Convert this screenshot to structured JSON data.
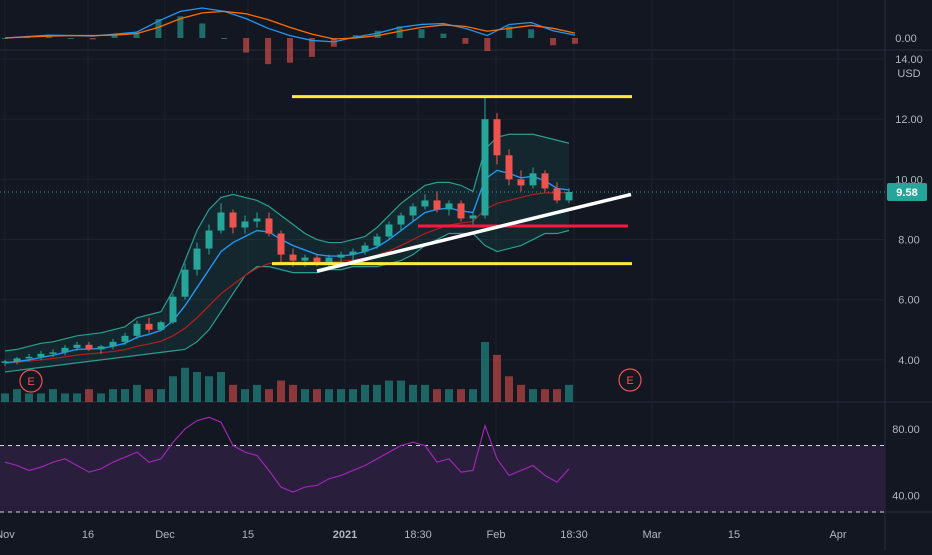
{
  "colors": {
    "background": "#131722",
    "grid": "#1e222d",
    "axis_text": "#b2b5be",
    "candle_up": "#26a69a",
    "candle_down": "#ef5350",
    "bollinger": "#2a9d8f",
    "ema_fast": "#2196f3",
    "ema_slow": "#b71c1c",
    "macd_line": "#2196f3",
    "macd_signal": "#ff6d00",
    "rsi_line": "#9c27b0",
    "rsi_band": "#2a1e3d",
    "price_badge": "#26a69a",
    "trend_resistance": "#ffeb3b",
    "trend_support": "#ffeb3b",
    "trend_rising": "#ffffff",
    "trend_level_red": "#ff1744"
  },
  "chart_data": [
    {
      "type": "line",
      "panel": "macd",
      "y_ticks": [
        "0.00"
      ],
      "series": [
        {
          "values": [
            0.0,
            0.03,
            0.06,
            0.05,
            0.04,
            0.08,
            0.12,
            0.35,
            0.55,
            0.62,
            0.55,
            0.4,
            0.2,
            0.05,
            -0.05,
            -0.08,
            0.02,
            0.1,
            0.22,
            0.28,
            0.3,
            0.2,
            0.05,
            0.28,
            0.32,
            0.15,
            0.06
          ]
        },
        {
          "values": [
            0.0,
            0.02,
            0.04,
            0.05,
            0.05,
            0.06,
            0.09,
            0.22,
            0.4,
            0.52,
            0.55,
            0.5,
            0.38,
            0.22,
            0.08,
            -0.02,
            0.0,
            0.05,
            0.14,
            0.22,
            0.27,
            0.24,
            0.14,
            0.2,
            0.26,
            0.2,
            0.1
          ]
        }
      ]
    },
    {
      "type": "candlestick",
      "panel": "price",
      "currency": "USD",
      "y_ticks": [
        "14.00",
        "12.00",
        "10.00",
        "8.00",
        "6.00",
        "4.00"
      ],
      "ylim": [
        2.6,
        14.3
      ],
      "last_price": "9.58",
      "candles": [
        [
          3.9,
          4.0,
          3.8,
          3.95
        ],
        [
          3.95,
          4.1,
          3.85,
          4.05
        ],
        [
          4.05,
          4.2,
          3.95,
          4.1
        ],
        [
          4.1,
          4.3,
          4.0,
          4.2
        ],
        [
          4.2,
          4.35,
          4.1,
          4.25
        ],
        [
          4.25,
          4.5,
          4.15,
          4.4
        ],
        [
          4.4,
          4.6,
          4.3,
          4.5
        ],
        [
          4.5,
          4.6,
          4.3,
          4.35
        ],
        [
          4.35,
          4.5,
          4.2,
          4.45
        ],
        [
          4.45,
          4.7,
          4.35,
          4.6
        ],
        [
          4.6,
          4.9,
          4.5,
          4.8
        ],
        [
          4.8,
          5.3,
          4.7,
          5.2
        ],
        [
          5.2,
          5.4,
          4.9,
          5.0
        ],
        [
          5.0,
          5.3,
          4.95,
          5.25
        ],
        [
          5.25,
          6.2,
          5.2,
          6.1
        ],
        [
          6.1,
          7.2,
          6.0,
          7.0
        ],
        [
          7.0,
          7.9,
          6.8,
          7.7
        ],
        [
          7.7,
          8.5,
          7.5,
          8.3
        ],
        [
          8.3,
          9.2,
          8.2,
          8.9
        ],
        [
          8.9,
          9.0,
          8.2,
          8.4
        ],
        [
          8.4,
          8.8,
          8.2,
          8.6
        ],
        [
          8.6,
          8.9,
          8.4,
          8.7
        ],
        [
          8.7,
          8.9,
          8.1,
          8.2
        ],
        [
          8.2,
          8.3,
          7.2,
          7.5
        ],
        [
          7.5,
          7.7,
          7.1,
          7.3
        ],
        [
          7.3,
          7.5,
          7.1,
          7.4
        ],
        [
          7.4,
          7.5,
          7.1,
          7.2
        ],
        [
          7.2,
          7.5,
          7.1,
          7.4
        ],
        [
          7.4,
          7.6,
          7.2,
          7.5
        ],
        [
          7.5,
          7.7,
          7.3,
          7.6
        ],
        [
          7.6,
          7.9,
          7.5,
          7.8
        ],
        [
          7.8,
          8.2,
          7.7,
          8.1
        ],
        [
          8.1,
          8.6,
          8.0,
          8.5
        ],
        [
          8.5,
          8.9,
          8.3,
          8.8
        ],
        [
          8.8,
          9.2,
          8.6,
          9.1
        ],
        [
          9.1,
          9.5,
          9.0,
          9.3
        ],
        [
          9.3,
          9.6,
          8.9,
          9.0
        ],
        [
          9.0,
          9.3,
          8.8,
          9.2
        ],
        [
          9.2,
          9.3,
          8.6,
          8.7
        ],
        [
          8.7,
          8.9,
          8.4,
          8.8
        ],
        [
          8.8,
          12.8,
          8.7,
          12.0
        ],
        [
          12.0,
          12.2,
          10.5,
          10.8
        ],
        [
          10.8,
          11.0,
          9.8,
          10.0
        ],
        [
          10.0,
          10.3,
          9.6,
          9.8
        ],
        [
          9.8,
          10.4,
          9.7,
          10.2
        ],
        [
          10.2,
          10.3,
          9.6,
          9.7
        ],
        [
          9.7,
          9.9,
          9.2,
          9.3
        ],
        [
          9.3,
          9.7,
          9.2,
          9.58
        ]
      ],
      "bollinger_upper": [
        4.3,
        4.35,
        4.45,
        4.55,
        4.6,
        4.7,
        4.8,
        4.85,
        4.9,
        5.0,
        5.1,
        5.4,
        5.5,
        5.6,
        6.3,
        7.3,
        8.3,
        9.0,
        9.4,
        9.5,
        9.4,
        9.3,
        9.1,
        8.8,
        8.5,
        8.2,
        8.0,
        7.9,
        7.9,
        8.0,
        8.1,
        8.4,
        8.8,
        9.2,
        9.5,
        9.8,
        9.9,
        9.9,
        9.8,
        9.6,
        11.0,
        11.4,
        11.5,
        11.5,
        11.5,
        11.4,
        11.3,
        11.2
      ],
      "bollinger_lower": [
        3.6,
        3.65,
        3.7,
        3.75,
        3.8,
        3.85,
        3.9,
        3.95,
        4.0,
        4.05,
        4.1,
        4.15,
        4.2,
        4.25,
        4.3,
        4.35,
        4.6,
        5.0,
        5.6,
        6.2,
        6.8,
        7.1,
        7.1,
        7.0,
        6.9,
        6.9,
        6.9,
        7.0,
        7.0,
        7.1,
        7.1,
        7.1,
        7.2,
        7.3,
        7.5,
        7.8,
        8.0,
        8.2,
        8.2,
        8.2,
        7.8,
        7.6,
        7.7,
        7.8,
        8.0,
        8.2,
        8.2,
        8.3
      ],
      "ema_fast": [
        3.9,
        3.95,
        4.0,
        4.08,
        4.15,
        4.25,
        4.35,
        4.36,
        4.38,
        4.45,
        4.55,
        4.75,
        4.85,
        4.98,
        5.3,
        5.8,
        6.4,
        7.0,
        7.6,
        7.9,
        8.1,
        8.3,
        8.25,
        8.0,
        7.8,
        7.65,
        7.5,
        7.45,
        7.45,
        7.5,
        7.6,
        7.75,
        8.0,
        8.3,
        8.6,
        8.9,
        9.0,
        9.05,
        8.95,
        8.9,
        10.0,
        10.3,
        10.2,
        10.05,
        10.1,
        9.95,
        9.7,
        9.65
      ],
      "ema_slow": [
        3.9,
        3.92,
        3.96,
        4.0,
        4.05,
        4.1,
        4.16,
        4.2,
        4.24,
        4.28,
        4.34,
        4.45,
        4.53,
        4.62,
        4.8,
        5.05,
        5.4,
        5.8,
        6.2,
        6.5,
        6.8,
        7.05,
        7.2,
        7.25,
        7.25,
        7.25,
        7.25,
        7.25,
        7.28,
        7.32,
        7.38,
        7.48,
        7.62,
        7.8,
        8.0,
        8.2,
        8.35,
        8.48,
        8.55,
        8.6,
        9.0,
        9.2,
        9.3,
        9.4,
        9.5,
        9.55,
        9.55,
        9.56
      ],
      "volume": [
        2,
        3,
        2,
        2,
        3,
        2,
        2,
        3,
        2,
        3,
        3,
        4,
        3,
        3,
        6,
        8,
        7,
        6,
        7,
        4,
        3,
        4,
        3,
        5,
        4,
        3,
        3,
        3,
        3,
        3,
        4,
        4,
        5,
        5,
        4,
        4,
        3,
        3,
        3,
        3,
        14,
        11,
        6,
        4,
        3,
        3,
        3,
        4
      ],
      "earnings_markers": [
        "E",
        "E"
      ],
      "annotations": [
        {
          "kind": "horizontal",
          "color": "#ffeb3b",
          "y": 12.75
        },
        {
          "kind": "horizontal",
          "color": "#ffeb3b",
          "y": 7.2
        },
        {
          "kind": "horizontal",
          "color": "#ff1744",
          "y": 8.45
        },
        {
          "kind": "trendline",
          "color": "#ffffff",
          "y_start": 6.95,
          "y_end": 9.5
        }
      ]
    },
    {
      "type": "line",
      "panel": "rsi",
      "y_ticks": [
        "80.00",
        "40.00"
      ],
      "ylim": [
        30,
        95
      ],
      "band": [
        30,
        70
      ],
      "values": [
        60,
        58,
        55,
        57,
        60,
        62,
        58,
        54,
        56,
        60,
        63,
        66,
        60,
        62,
        72,
        80,
        85,
        87,
        84,
        70,
        66,
        64,
        55,
        45,
        42,
        45,
        46,
        50,
        52,
        55,
        58,
        62,
        66,
        70,
        72,
        70,
        60,
        62,
        54,
        55,
        82,
        62,
        52,
        55,
        58,
        52,
        48,
        56
      ]
    }
  ],
  "x_axis": {
    "ticks": [
      "Nov",
      "16",
      "Dec",
      "15",
      "2021",
      "18:30",
      "Feb",
      "18:30",
      "Mar",
      "15",
      "Apr"
    ]
  }
}
